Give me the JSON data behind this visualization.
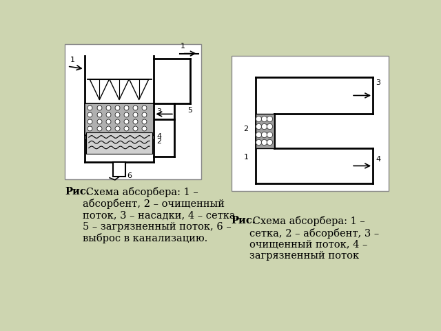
{
  "bg_color": "#cdd5b0",
  "text1_bold": "Рис.",
  "text1_normal": " Схема абсорбера: 1 –\nабсорбент, 2 – очищенный\nпоток, 3 – насадки, 4 – сетка,\n5 – загрязненный поток, 6 –\nвыброс в канализацию.",
  "text2_bold": "Рис.",
  "text2_normal": " Схема абсорбера: 1 –\nсетка, 2 – абсорбент, 3 –\nочищенный поток, 4 –\nзагрязненный поток"
}
